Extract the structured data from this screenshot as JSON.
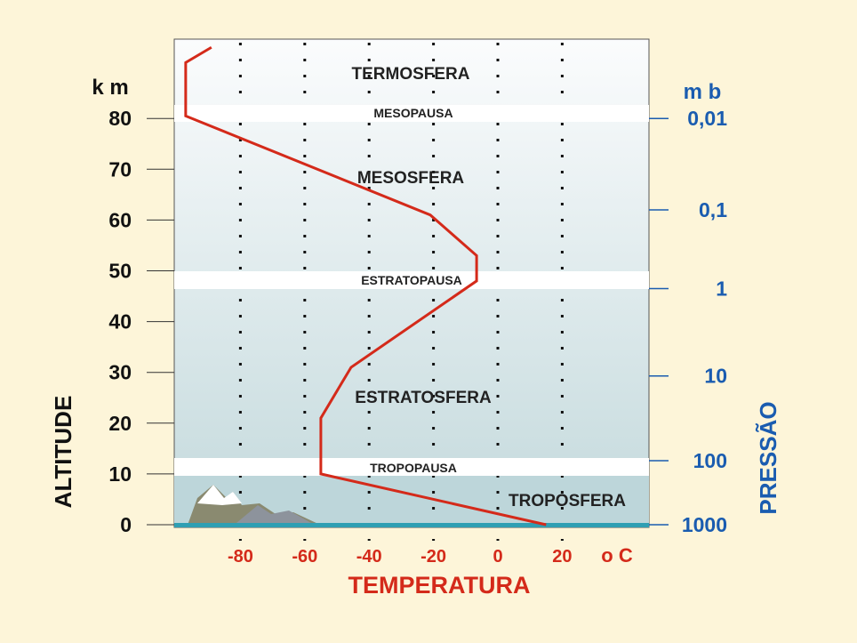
{
  "chart_data": {
    "type": "line",
    "xlabel": "TEMPERATURA",
    "x_unit": "o C",
    "ylabel_left": "ALTITUDE",
    "y_unit_left": "k m",
    "ylabel_right": "PRESSÃO",
    "y_unit_right": "m b",
    "x_ticks": [
      -80,
      -60,
      -40,
      -20,
      0,
      20
    ],
    "y_ticks": [
      0,
      10,
      20,
      30,
      40,
      50,
      60,
      70,
      80
    ],
    "pressure_ticks": [
      {
        "label": "0,01",
        "altitude": 80
      },
      {
        "label": "0,1",
        "altitude": 62
      },
      {
        "label": "1",
        "altitude": 46.5
      },
      {
        "label": "10",
        "altitude": 29.3
      },
      {
        "label": "100",
        "altitude": 12.6
      },
      {
        "label": "1000",
        "altitude": 0
      }
    ],
    "xlim": [
      -100,
      30
    ],
    "ylim": [
      0,
      95
    ],
    "grid": "vertical dotted",
    "series": [
      {
        "color": "#d42a1a",
        "points": [
          [
            15,
            0
          ],
          [
            -55,
            10
          ],
          [
            -55,
            21
          ],
          [
            -45.6,
            31
          ],
          [
            -6.6,
            48
          ],
          [
            -6.6,
            53
          ],
          [
            -21,
            61
          ],
          [
            -97,
            80.5
          ],
          [
            -97,
            91
          ],
          [
            -89,
            94
          ]
        ]
      }
    ],
    "layers": [
      {
        "label": "TROPOSFERA",
        "altitude": 5
      },
      {
        "label": "TROPOPAUSA",
        "altitude": 11.5
      },
      {
        "label": "ESTRATOSFERA",
        "altitude": 25
      },
      {
        "label": "ESTRATOPAUSA",
        "altitude": 48.5
      },
      {
        "label": "MESOSFERA",
        "altitude": 68
      },
      {
        "label": "MESOPAUSA",
        "altitude": 81.5
      },
      {
        "label": "TERMOSFERA",
        "altitude": 89
      }
    ],
    "colors": {
      "temperature": "#d42a1a",
      "pressure": "#1a5cb0",
      "axis_text": "#111111",
      "background": "#fdf5d9"
    }
  }
}
